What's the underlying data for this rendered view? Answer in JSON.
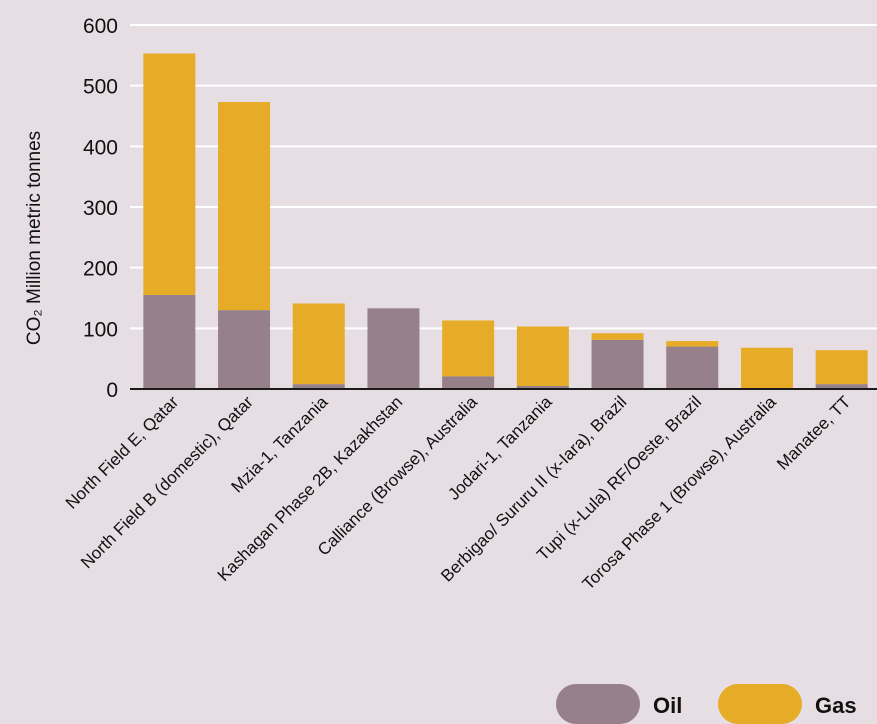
{
  "chart_data": {
    "type": "bar",
    "stacked": true,
    "ylabel": "CO₂ Million metric tonnes",
    "ylim": [
      0,
      600
    ],
    "yticks": [
      0,
      100,
      200,
      300,
      400,
      500,
      600
    ],
    "grid": true,
    "legend_position": "bottom-right",
    "categories": [
      "North Field E, Qatar",
      "North Field B (domestic), Qatar",
      "Mzia-1, Tanzania",
      "Kashagan Phase 2B, Kazakhstan",
      "Calliance (Browse), Australia",
      "Jodari-1, Tanzania",
      "Berbigao/ Sururu II (x-Iara), Brazil",
      "Tupi (x-Lula) RF/Oeste, Brazil",
      "Torosa Phase 1 (Browse), Australia",
      "Manatee, TT"
    ],
    "series": [
      {
        "name": "Oil",
        "color": "#968089",
        "values": [
          155,
          130,
          8,
          133,
          21,
          5,
          81,
          70,
          1,
          8
        ]
      },
      {
        "name": "Gas",
        "color": "#e6ab27",
        "values": [
          398,
          343,
          133,
          0,
          92,
          98,
          11,
          9,
          67,
          56
        ]
      }
    ]
  }
}
